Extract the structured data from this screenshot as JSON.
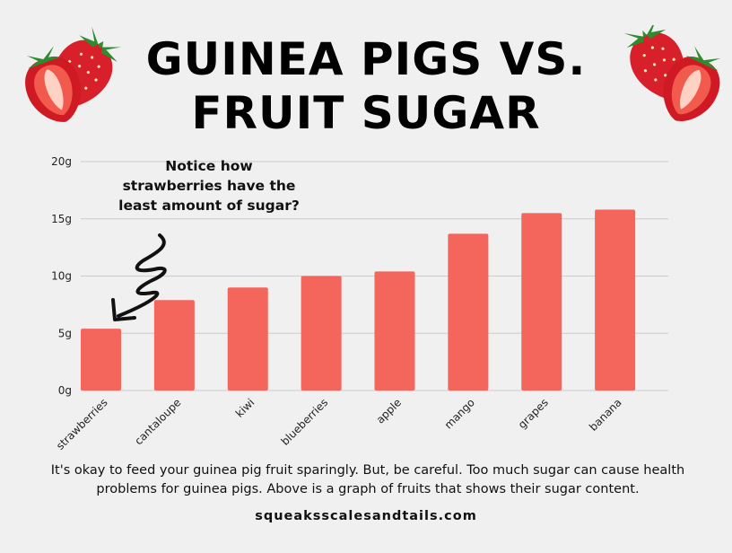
{
  "title_lines": [
    "GUINEA PIGS VS.",
    "FRUIT SUGAR"
  ],
  "annotation": "Notice how strawberries have the least amount of sugar?",
  "caption": "It's okay to feed your guinea pig fruit sparingly.  But, be careful.  Too much sugar can cause health problems for guinea pigs.  Above is a graph of fruits that shows their sugar content.",
  "website": "squeaksscalesandtails.com",
  "colors": {
    "bar": "#f4655b",
    "background": "#f0f0f0",
    "grid": "#cccccc"
  },
  "icons": [
    "strawberry-icon"
  ],
  "chart_data": {
    "type": "bar",
    "categories": [
      "strawberries",
      "cantaloupe",
      "kiwi",
      "blueberries",
      "apple",
      "mango",
      "grapes",
      "banana"
    ],
    "values": [
      5.4,
      7.9,
      9.0,
      10.0,
      10.4,
      13.7,
      15.5,
      15.8
    ],
    "ylim": [
      0,
      20
    ],
    "yticks": [
      0,
      5,
      10,
      15,
      20
    ],
    "ytick_labels": [
      "0g",
      "5g",
      "10g",
      "15g",
      "20g"
    ],
    "grid": true
  }
}
